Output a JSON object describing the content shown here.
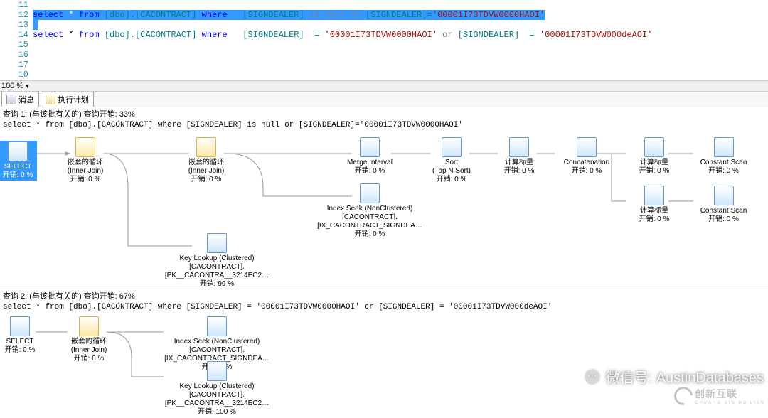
{
  "editor": {
    "lines": [
      {
        "num": 11,
        "raw": ""
      },
      {
        "num": 12,
        "selected": true,
        "tokens": [
          {
            "t": "select",
            "c": "kw"
          },
          {
            "t": " * "
          },
          {
            "t": "from",
            "c": "kw"
          },
          {
            "t": " [dbo].[CACONTRACT] ",
            "c": "fn"
          },
          {
            "t": "where",
            "c": "kw"
          },
          {
            "t": "   [SIGNDEALER] ",
            "c": "fn"
          },
          {
            "t": "is null or",
            "c": "op"
          },
          {
            "t": " [SIGNDEALER]=",
            "c": "fn"
          },
          {
            "t": "'00001I73TDVW0000HAOI'",
            "c": "str"
          }
        ]
      },
      {
        "num": 13,
        "selected": true,
        "tokens": [
          {
            "t": " "
          }
        ]
      },
      {
        "num": 14,
        "tokens": [
          {
            "t": "select",
            "c": "kw"
          },
          {
            "t": " * "
          },
          {
            "t": "from",
            "c": "kw"
          },
          {
            "t": " [dbo].[CACONTRACT] ",
            "c": "fn"
          },
          {
            "t": "where",
            "c": "kw"
          },
          {
            "t": "   [SIGNDEALER]  = ",
            "c": "fn"
          },
          {
            "t": "'00001I73TDVW0000HAOI'",
            "c": "str"
          },
          {
            "t": " or ",
            "c": "op"
          },
          {
            "t": "[SIGNDEALER]  = ",
            "c": "fn"
          },
          {
            "t": "'00001I73TDVW000deAOI'",
            "c": "str"
          }
        ]
      },
      {
        "num": 15,
        "raw": ""
      },
      {
        "num": 16,
        "raw": ""
      },
      {
        "num": 17,
        "raw": ""
      },
      {
        "num": "10",
        "raw": ""
      }
    ]
  },
  "zoom": "100 %",
  "tabs": {
    "t1": "消息",
    "t2": "执行计划"
  },
  "plan1": {
    "header": "查询 1: (与该批有关的) 查询开销: 33%",
    "sql": "select * from [dbo].[CACONTRACT] where [SIGNDEALER] is null or [SIGNDEALER]='00001I73TDVW0000HAOI'",
    "nodes": {
      "select": {
        "label": "SELECT",
        "cost": "开销: 0 %"
      },
      "nl1": {
        "label": "嵌套的循环",
        "sub": "(Inner Join)",
        "cost": "开销: 0 %"
      },
      "nl2": {
        "label": "嵌套的循环",
        "sub": "(Inner Join)",
        "cost": "开销: 0 %"
      },
      "merge": {
        "label": "Merge Interval",
        "cost": "开销: 0 %"
      },
      "sort": {
        "label": "Sort",
        "sub": "(Top N Sort)",
        "cost": "开销: 0 %"
      },
      "cs1": {
        "label": "计算标量",
        "cost": "开销: 0 %"
      },
      "concat": {
        "label": "Concatenation",
        "cost": "开销: 0 %"
      },
      "cs2": {
        "label": "计算标量",
        "cost": "开销: 0 %"
      },
      "const1": {
        "label": "Constant Scan",
        "cost": "开销: 0 %"
      },
      "cs3": {
        "label": "计算标量",
        "cost": "开销: 0 %"
      },
      "const2": {
        "label": "Constant Scan",
        "cost": "开销: 0 %"
      },
      "seek": {
        "label": "Index Seek (NonClustered)",
        "sub": "[CACONTRACT].[IX_CACONTRACT_SIGNDEA…",
        "cost": "开销: 0 %"
      },
      "keylookup": {
        "label": "Key Lookup (Clustered)",
        "sub": "[CACONTRACT].[PK__CACONTRA__3214EC2…",
        "cost": "开销: 99 %"
      }
    }
  },
  "plan2": {
    "header": "查询 2: (与该批有关的) 查询开销: 67%",
    "sql": "select * from [dbo].[CACONTRACT] where [SIGNDEALER] = '00001I73TDVW0000HAOI' or [SIGNDEALER] = '00001I73TDVW000deAOI'",
    "nodes": {
      "select": {
        "label": "SELECT",
        "cost": "开销: 0 %"
      },
      "nl": {
        "label": "嵌套的循环",
        "sub": "(Inner Join)",
        "cost": "开销: 0 %"
      },
      "seek": {
        "label": "Index Seek (NonClustered)",
        "sub": "[CACONTRACT].[IX_CACONTRACT_SIGNDEA…",
        "cost": "开销: 0 %"
      },
      "keylookup": {
        "label": "Key Lookup (Clustered)",
        "sub": "[CACONTRACT].[PK__CACONTRA__3214EC2…",
        "cost": "开销: 100 %"
      }
    }
  },
  "watermark": "微信号: AustinDatabases",
  "brand": {
    "name": "创新互联",
    "sub": "CHUANG XIN HU LIAN"
  }
}
